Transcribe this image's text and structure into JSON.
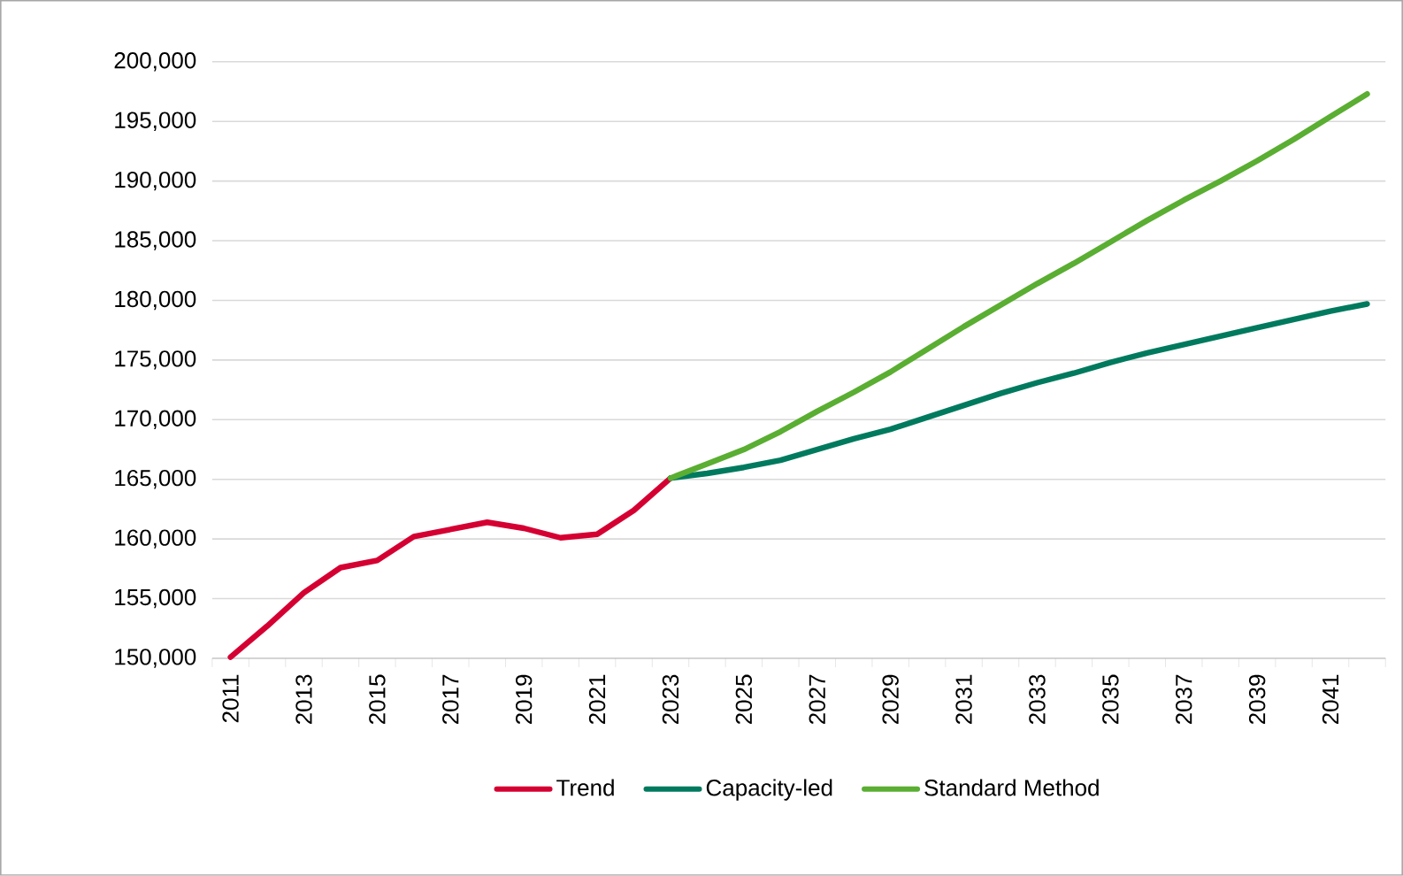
{
  "chart_data": {
    "type": "line",
    "categories": [
      "2011",
      null,
      "2013",
      null,
      "2015",
      null,
      "2017",
      null,
      "2019",
      null,
      "2021",
      null,
      "2023",
      null,
      "2025",
      null,
      "2027",
      null,
      "2029",
      null,
      "2031",
      null,
      "2033",
      null,
      "2035",
      null,
      "2037",
      null,
      "2039",
      null,
      "2041",
      null
    ],
    "series": [
      {
        "name": "Trend",
        "color": "#d50032",
        "values": [
          150100,
          152700,
          155500,
          157600,
          158200,
          160200,
          160800,
          161400,
          160900,
          160100,
          160400,
          162400,
          165100,
          null,
          null,
          null,
          null,
          null,
          null,
          null,
          null,
          null,
          null,
          null,
          null,
          null,
          null,
          null,
          null,
          null,
          null,
          null
        ]
      },
      {
        "name": "Capacity-led",
        "color": "#007a5e",
        "values": [
          null,
          null,
          null,
          null,
          null,
          null,
          null,
          null,
          null,
          null,
          null,
          null,
          165100,
          165500,
          166000,
          166600,
          167500,
          168400,
          169200,
          170200,
          171200,
          172200,
          173100,
          173900,
          174800,
          175600,
          176300,
          177000,
          177700,
          178400,
          179100,
          179700
        ]
      },
      {
        "name": "Standard Method",
        "color": "#5aae32",
        "values": [
          null,
          null,
          null,
          null,
          null,
          null,
          null,
          null,
          null,
          null,
          null,
          null,
          165100,
          166300,
          167500,
          169000,
          170700,
          172300,
          174000,
          175900,
          177800,
          179600,
          181400,
          183100,
          184900,
          186700,
          188400,
          190000,
          191700,
          193500,
          195400,
          197300
        ]
      }
    ],
    "ylim": [
      150000,
      200000
    ],
    "yticks": [
      {
        "value": 150000,
        "label": "150,000"
      },
      {
        "value": 155000,
        "label": "155,000"
      },
      {
        "value": 160000,
        "label": "160,000"
      },
      {
        "value": 165000,
        "label": "165,000"
      },
      {
        "value": 170000,
        "label": "170,000"
      },
      {
        "value": 175000,
        "label": "175,000"
      },
      {
        "value": 180000,
        "label": "180,000"
      },
      {
        "value": 185000,
        "label": "185,000"
      },
      {
        "value": 190000,
        "label": "190,000"
      },
      {
        "value": 195000,
        "label": "195,000"
      },
      {
        "value": 200000,
        "label": "200,000"
      }
    ],
    "grid": "y",
    "legend": "bottom",
    "marker": "none",
    "line_style": "solid"
  }
}
